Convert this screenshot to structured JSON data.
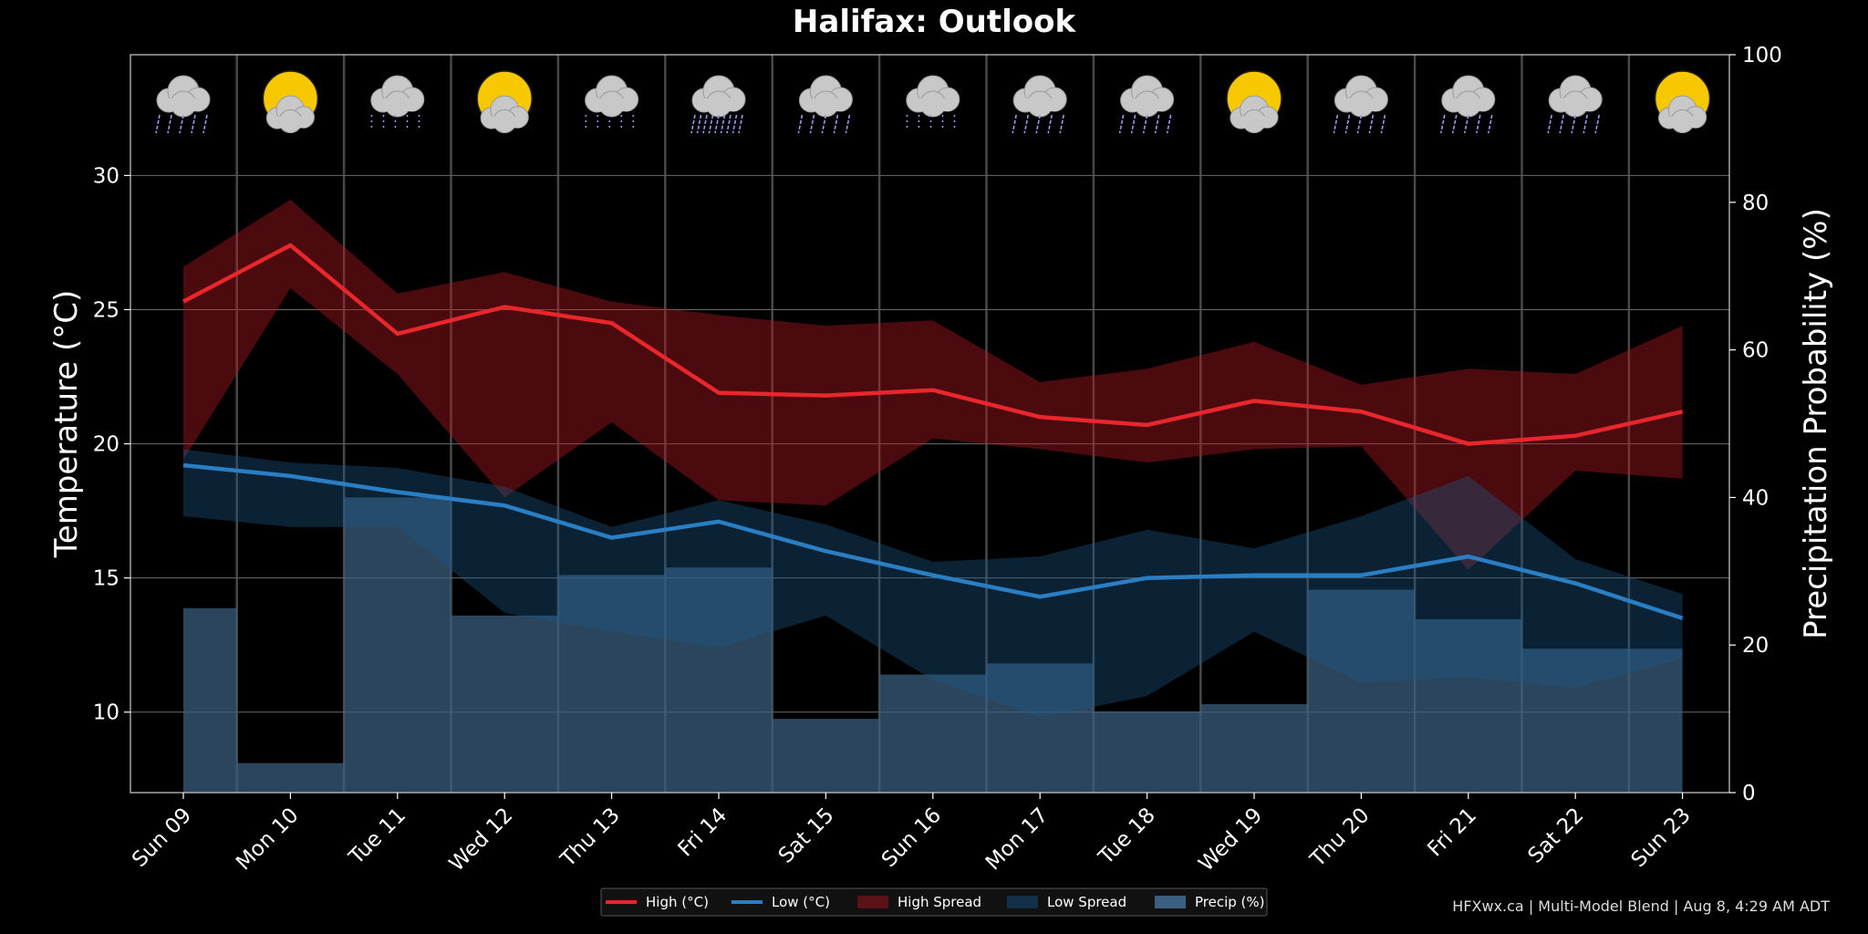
{
  "chart_data": {
    "type": "line",
    "title": "Halifax: Outlook",
    "ylabel": "Temperature (°C)",
    "y2label": "Precipitation Probability (%)",
    "ylim": [
      7,
      34.5
    ],
    "y2lim": [
      0,
      100
    ],
    "yticks": [
      10,
      15,
      20,
      25,
      30
    ],
    "y2ticks": [
      0,
      20,
      40,
      60,
      80,
      100
    ],
    "categories": [
      "Sun 09",
      "Mon 10",
      "Tue 11",
      "Wed 12",
      "Thu 13",
      "Fri 14",
      "Sat 15",
      "Sun 16",
      "Mon 17",
      "Tue 18",
      "Wed 19",
      "Thu 20",
      "Fri 21",
      "Sat 22",
      "Sun 23"
    ],
    "icons": [
      "rain",
      "partly-cloudy",
      "snow",
      "partly-cloudy",
      "snow",
      "heavy-rain",
      "rain",
      "snow",
      "rain",
      "rain",
      "partly-cloudy",
      "rain",
      "rain",
      "rain",
      "partly-cloudy"
    ],
    "grid": true,
    "legend_position": "bottom-center",
    "series": [
      {
        "name": "High (°C)",
        "type": "line",
        "color": "#e8262b",
        "values": [
          25.3,
          27.4,
          24.1,
          25.1,
          24.5,
          21.9,
          21.8,
          22.0,
          21.0,
          20.7,
          21.6,
          21.2,
          20.0,
          20.3,
          21.2
        ]
      },
      {
        "name": "Low (°C)",
        "type": "line",
        "color": "#2a7fc4",
        "values": [
          19.2,
          18.8,
          18.2,
          17.7,
          16.5,
          17.1,
          16.0,
          15.1,
          14.3,
          15.0,
          15.1,
          15.1,
          15.8,
          14.8,
          13.5
        ]
      },
      {
        "name": "High Spread",
        "type": "band",
        "color": "#450e12",
        "upper": [
          26.6,
          29.1,
          25.6,
          26.4,
          25.3,
          24.8,
          24.4,
          24.6,
          22.3,
          22.8,
          23.8,
          22.2,
          22.8,
          22.6,
          24.4
        ],
        "lower": [
          19.4,
          25.8,
          22.6,
          18.0,
          20.8,
          17.9,
          17.7,
          20.2,
          19.8,
          19.3,
          19.8,
          19.9,
          15.3,
          19.0,
          18.7
        ]
      },
      {
        "name": "Low Spread",
        "type": "band",
        "color": "#0b2438",
        "upper": [
          19.8,
          19.3,
          19.1,
          18.4,
          16.9,
          17.9,
          17.0,
          15.6,
          15.8,
          16.8,
          16.1,
          17.3,
          18.8,
          15.7,
          14.4
        ]
      },
      {
        "name": "Precip (%)",
        "type": "step",
        "axis": "y2",
        "color": "#3a5f80",
        "values": [
          25,
          4,
          40,
          24,
          29.5,
          30.5,
          10,
          16,
          17.5,
          11,
          12,
          27.5,
          23.5,
          19.5,
          19.5
        ]
      }
    ],
    "low_spread_lower": [
      17.3,
      16.9,
      16.9,
      13.7,
      13.0,
      12.4,
      13.6,
      11.2,
      9.8,
      10.6,
      13.0,
      11.1,
      11.3,
      10.9,
      12.0
    ]
  },
  "footer": "HFXwx.ca | Multi-Model Blend | Aug 8, 4:29 AM ADT"
}
